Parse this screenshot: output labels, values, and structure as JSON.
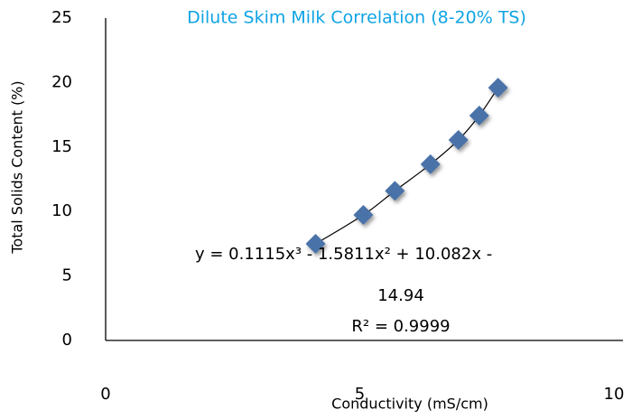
{
  "chart_data": {
    "type": "scatter",
    "title": "Dilute Skim Milk Correlation (8-20% TS)",
    "x_label": "Conductivity (mS/cm)",
    "y_label": "Total Solids Content (%)",
    "x": [
      4.13,
      5.07,
      5.69,
      6.39,
      6.94,
      7.35,
      7.72
    ],
    "values": [
      7.49,
      9.73,
      11.6,
      13.66,
      15.55,
      17.44,
      19.6
    ],
    "color": "#4a72a8",
    "xlim": [
      0,
      10
    ],
    "xticks": [
      0,
      5,
      10
    ],
    "ylim": [
      0,
      25
    ],
    "yticks": [
      0,
      5,
      10,
      15,
      20,
      25
    ],
    "grid": false,
    "trendline_label": [
      "y = 0.1115x³ - 1.5811x² + 10.082x - ",
      "14.94",
      "R² = 0.9999"
    ]
  }
}
